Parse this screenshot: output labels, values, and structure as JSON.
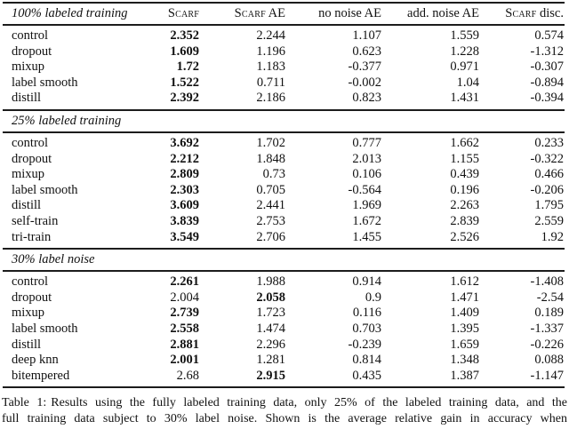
{
  "page": {
    "background_color": "#ffffff",
    "text_color": "#111111",
    "rule_color": "#1c1c1c"
  },
  "table": {
    "header": {
      "first_column": "100% labeled training",
      "columns": [
        {
          "parts": [
            {
              "text": "Scarf",
              "smallcaps": true
            }
          ]
        },
        {
          "parts": [
            {
              "text": "Scarf",
              "smallcaps": true
            },
            {
              "text": " AE",
              "smallcaps": false
            }
          ]
        },
        {
          "parts": [
            {
              "text": "no noise AE",
              "smallcaps": false
            }
          ]
        },
        {
          "parts": [
            {
              "text": "add. noise AE",
              "smallcaps": false
            }
          ]
        },
        {
          "parts": [
            {
              "text": "Scarf",
              "smallcaps": true
            },
            {
              "text": " disc.",
              "smallcaps": false
            }
          ]
        }
      ]
    },
    "sections": [
      {
        "label": null,
        "rows": [
          {
            "label": "control",
            "values": [
              "2.352",
              "2.244",
              "1.107",
              "1.559",
              "0.574"
            ],
            "bold_index": 0
          },
          {
            "label": "dropout",
            "values": [
              "1.609",
              "1.196",
              "0.623",
              "1.228",
              "-1.312"
            ],
            "bold_index": 0
          },
          {
            "label": "mixup",
            "values": [
              "1.72",
              "1.183",
              "-0.377",
              "0.971",
              "-0.307"
            ],
            "bold_index": 0
          },
          {
            "label": "label smooth",
            "values": [
              "1.522",
              "0.711",
              "-0.002",
              "1.04",
              "-0.894"
            ],
            "bold_index": 0
          },
          {
            "label": "distill",
            "values": [
              "2.392",
              "2.186",
              "0.823",
              "1.431",
              "-0.394"
            ],
            "bold_index": 0
          }
        ]
      },
      {
        "label": "25% labeled training",
        "rows": [
          {
            "label": "control",
            "values": [
              "3.692",
              "1.702",
              "0.777",
              "1.662",
              "0.233"
            ],
            "bold_index": 0
          },
          {
            "label": "dropout",
            "values": [
              "2.212",
              "1.848",
              "2.013",
              "1.155",
              "-0.322"
            ],
            "bold_index": 0
          },
          {
            "label": "mixup",
            "values": [
              "2.809",
              "0.73",
              "0.106",
              "0.439",
              "0.466"
            ],
            "bold_index": 0
          },
          {
            "label": "label smooth",
            "values": [
              "2.303",
              "0.705",
              "-0.564",
              "0.196",
              "-0.206"
            ],
            "bold_index": 0
          },
          {
            "label": "distill",
            "values": [
              "3.609",
              "2.441",
              "1.969",
              "2.263",
              "1.795"
            ],
            "bold_index": 0
          },
          {
            "label": "self-train",
            "values": [
              "3.839",
              "2.753",
              "1.672",
              "2.839",
              "2.559"
            ],
            "bold_index": 0
          },
          {
            "label": "tri-train",
            "values": [
              "3.549",
              "2.706",
              "1.455",
              "2.526",
              "1.92"
            ],
            "bold_index": 0
          }
        ]
      },
      {
        "label": "30% label noise",
        "rows": [
          {
            "label": "control",
            "values": [
              "2.261",
              "1.988",
              "0.914",
              "1.612",
              "-1.408"
            ],
            "bold_index": 0
          },
          {
            "label": "dropout",
            "values": [
              "2.004",
              "2.058",
              "0.9",
              "1.471",
              "-2.54"
            ],
            "bold_index": 1
          },
          {
            "label": "mixup",
            "values": [
              "2.739",
              "1.723",
              "0.116",
              "1.409",
              "0.189"
            ],
            "bold_index": 0
          },
          {
            "label": "label smooth",
            "values": [
              "2.558",
              "1.474",
              "0.703",
              "1.395",
              "-1.337"
            ],
            "bold_index": 0
          },
          {
            "label": "distill",
            "values": [
              "2.881",
              "2.296",
              "-0.239",
              "1.659",
              "-0.226"
            ],
            "bold_index": 0
          },
          {
            "label": "deep knn",
            "values": [
              "2.001",
              "1.281",
              "0.814",
              "1.348",
              "0.088"
            ],
            "bold_index": 0
          },
          {
            "label": "bitempered",
            "values": [
              "2.68",
              "2.915",
              "0.435",
              "1.387",
              "-1.147"
            ],
            "bold_index": 1
          }
        ]
      }
    ]
  },
  "caption": {
    "label": "Table 1:",
    "line1": "Results using the fully labeled training data, only 25% of the labeled training data, and the",
    "line2": "full training data subject to 30% label noise. Shown is the average relative gain in accuracy when"
  }
}
